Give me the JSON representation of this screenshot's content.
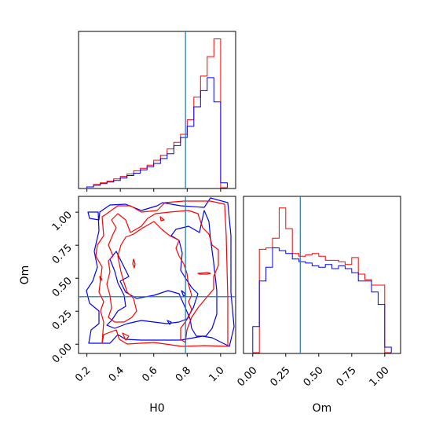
{
  "chart_data": {
    "type": "corner-plot",
    "parameters": [
      "H0",
      "Om"
    ],
    "colors": {
      "red_run": "#ff0000",
      "blue_run": "#0000ff",
      "truth": "#1f77b4"
    },
    "truth": {
      "H0": 0.79,
      "Om": 0.36
    },
    "panels": [
      {
        "type": "histogram-step",
        "parameter": "H0",
        "xlim": [
          0.15,
          1.09
        ],
        "bin_edges": [
          0.2,
          0.24,
          0.28,
          0.32,
          0.36,
          0.4,
          0.44,
          0.48,
          0.52,
          0.56,
          0.6,
          0.64,
          0.68,
          0.72,
          0.76,
          0.8,
          0.84,
          0.88,
          0.92,
          0.96,
          1.0,
          1.04
        ],
        "series": [
          {
            "name": "",
            "color": "#ff0000",
            "values": [
              1,
              4,
              6,
              8,
              11,
              14,
              17,
              21,
              24,
              28,
              34,
              40,
              48,
              56,
              66,
              84,
              112,
              138,
              162,
              184,
              0
            ]
          },
          {
            "name": "",
            "color": "#0000ff",
            "values": [
              1,
              3,
              5,
              7,
              9,
              12,
              15,
              18,
              22,
              26,
              30,
              36,
              42,
              52,
              62,
              76,
              100,
              120,
              136,
              106,
              6
            ]
          }
        ]
      },
      {
        "type": "contour",
        "x": "H0",
        "y": "Om",
        "xlim": [
          0.15,
          1.09
        ],
        "ylim": [
          -0.07,
          1.12
        ],
        "xticks": [
          "0.2",
          "0.4",
          "0.6",
          "0.8",
          "1.0"
        ],
        "yticks": [
          "0.00",
          "0.25",
          "0.50",
          "0.75",
          "1.00"
        ],
        "series": [
          {
            "name": "",
            "color": "#ff0000",
            "levels": 2
          },
          {
            "name": "",
            "color": "#0000ff",
            "levels": 2
          }
        ]
      },
      {
        "type": "histogram-step",
        "parameter": "Om",
        "xlim": [
          -0.07,
          1.12
        ],
        "xticks": [
          "0.00",
          "0.25",
          "0.50",
          "0.75",
          "1.00"
        ],
        "bin_edges": [
          0.0,
          0.05,
          0.1,
          0.15,
          0.2,
          0.25,
          0.3,
          0.35,
          0.4,
          0.45,
          0.5,
          0.55,
          0.6,
          0.65,
          0.7,
          0.75,
          0.8,
          0.85,
          0.9,
          0.95,
          1.0,
          1.05
        ],
        "series": [
          {
            "name": "",
            "color": "#ff0000",
            "values": [
              0,
              75,
              76,
              83,
              105,
              90,
              72,
              70,
              71,
              72,
              70,
              67,
              67,
              66,
              64,
              69,
              57,
              53,
              49,
              49,
              0
            ]
          },
          {
            "name": "",
            "color": "#0000ff",
            "values": [
              19,
              52,
              62,
              76,
              74,
              72,
              68,
              66,
              65,
              63,
              62,
              64,
              61,
              63,
              61,
              58,
              52,
              52,
              44,
              35,
              4
            ]
          }
        ]
      }
    ],
    "xlabels": [
      "H0",
      "Om"
    ],
    "ylabel": "Om",
    "grid": false,
    "legend": "none"
  }
}
